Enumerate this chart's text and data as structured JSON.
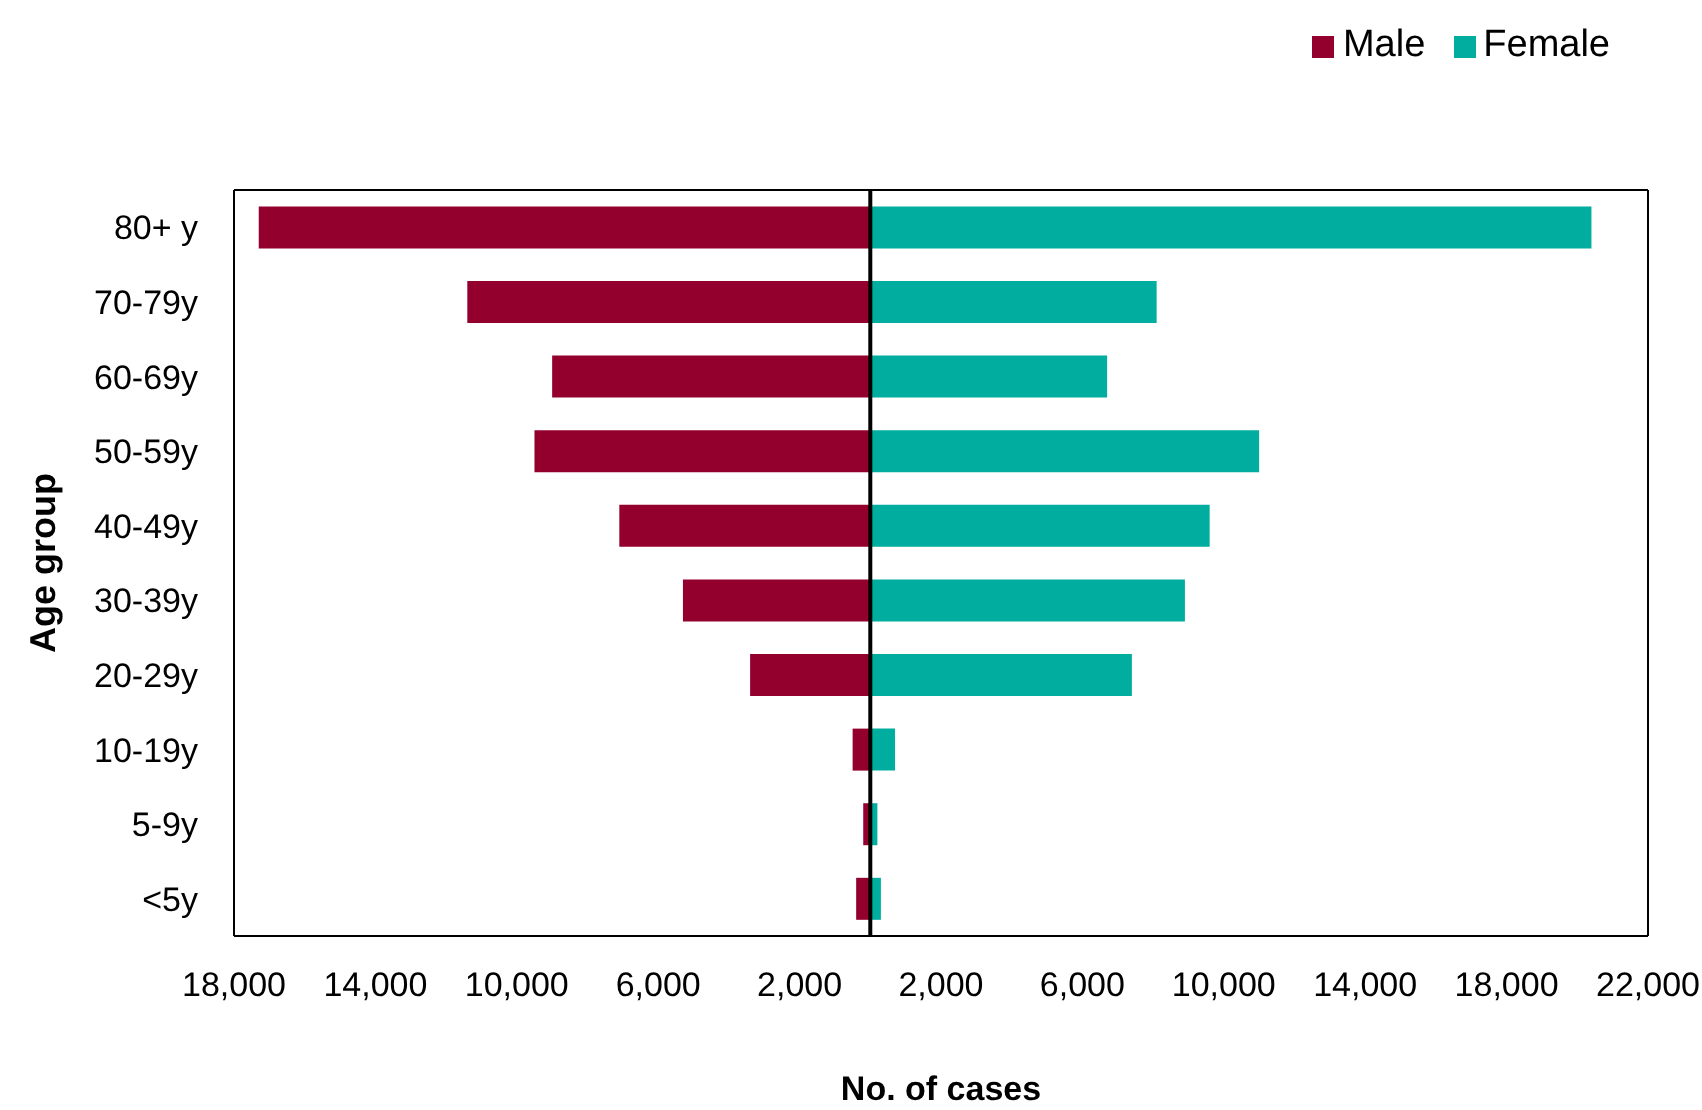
{
  "chart_data": {
    "type": "bar",
    "orientation": "horizontal",
    "stacked": true,
    "xlabel": "No. of cases",
    "ylabel": "Age group",
    "categories": [
      "80+ y",
      "70-79y",
      "60-69y",
      "50-59y",
      "40-49y",
      "30-39y",
      "20-29y",
      "10-19y",
      "5-9y",
      "<5y"
    ],
    "series": [
      {
        "name": "Male",
        "color": "#94002d",
        "values": [
          -17300,
          -11400,
          -9000,
          -9500,
          -7100,
          -5300,
          -3400,
          -500,
          -200,
          -400
        ]
      },
      {
        "name": "Female",
        "color": "#00ad9e",
        "values": [
          20400,
          8100,
          6700,
          11000,
          9600,
          8900,
          7400,
          700,
          200,
          300
        ]
      }
    ],
    "xlim": [
      -18000,
      22000
    ],
    "xticks": [
      {
        "value": -18000,
        "label": "18,000"
      },
      {
        "value": -14000,
        "label": "14,000"
      },
      {
        "value": -10000,
        "label": "10,000"
      },
      {
        "value": -6000,
        "label": "6,000"
      },
      {
        "value": -2000,
        "label": "2,000"
      },
      {
        "value": 2000,
        "label": "2,000"
      },
      {
        "value": 6000,
        "label": "6,000"
      },
      {
        "value": 10000,
        "label": "10,000"
      },
      {
        "value": 14000,
        "label": "14,000"
      },
      {
        "value": 18000,
        "label": "18,000"
      },
      {
        "value": 22000,
        "label": "22,000"
      }
    ],
    "ref_lines": [
      {
        "axis": "x",
        "value": 0,
        "color": "#000000"
      }
    ],
    "grid": false,
    "legend": "top right"
  }
}
